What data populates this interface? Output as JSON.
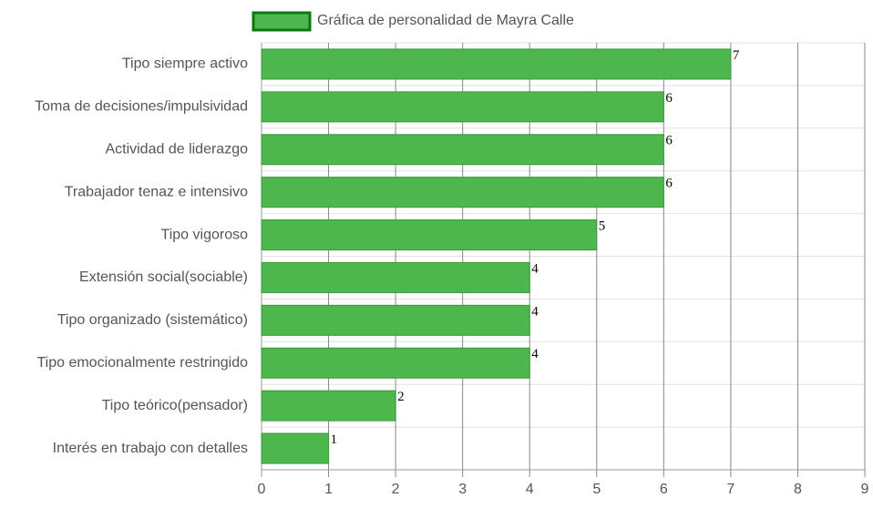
{
  "chart_data": {
    "type": "bar",
    "orientation": "horizontal",
    "categories": [
      "Tipo siempre activo",
      "Toma de decisiones/impulsividad",
      "Actividad de liderazgo",
      "Trabajador tenaz e intensivo",
      "Tipo vigoroso",
      "Extensión social(sociable)",
      "Tipo organizado (sistemático)",
      "Tipo emocionalmente restringido",
      "Tipo teórico(pensador)",
      "Interés en trabajo con detalles"
    ],
    "series": [
      {
        "name": "Gráfica de personalidad de Mayra Calle",
        "color": "#4db64d",
        "values": [
          7,
          6,
          6,
          6,
          5,
          4,
          4,
          4,
          2,
          1
        ]
      }
    ],
    "xlim": [
      0,
      9
    ],
    "xticks": [
      0,
      1,
      2,
      3,
      4,
      5,
      6,
      7,
      8,
      9
    ],
    "grid": true
  }
}
